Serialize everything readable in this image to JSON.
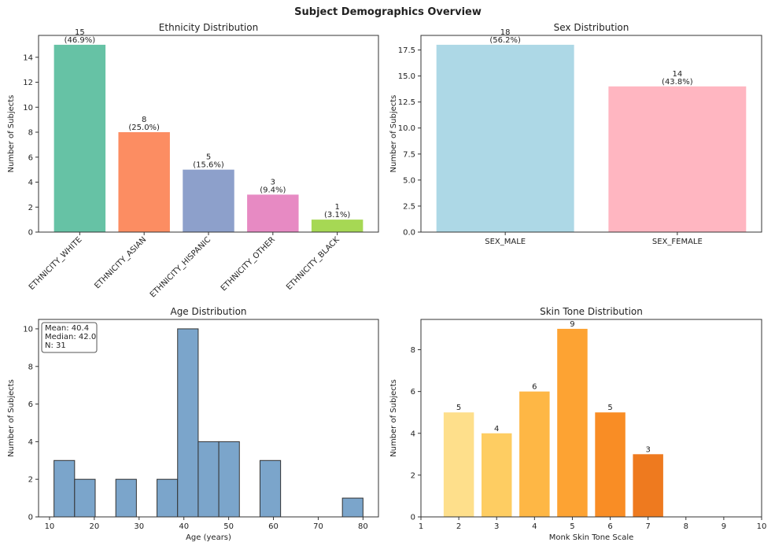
{
  "title": "Subject Demographics Overview",
  "chart_data": [
    {
      "type": "bar",
      "title": "Ethnicity Distribution",
      "ylabel": "Number of Subjects",
      "categories": [
        "ETHNICITY_WHITE",
        "ETHNICITY_ASIAN",
        "ETHNICITY_HISPANIC",
        "ETHNICITY_OTHER",
        "ETHNICITY_BLACK"
      ],
      "values": [
        15,
        8,
        5,
        3,
        1
      ],
      "value_labels": [
        "15\n(46.9%)",
        "8\n(25.0%)",
        "5\n(15.6%)",
        "3\n(9.4%)",
        "1\n(3.1%)"
      ],
      "colors": [
        "#66c2a5",
        "#fc8d62",
        "#8da0cb",
        "#e78ac3",
        "#a6d854"
      ],
      "xtick_rotation": 45,
      "ylim": [
        0,
        15.75
      ],
      "yticks": [
        0,
        2,
        4,
        6,
        8,
        10,
        12,
        14
      ]
    },
    {
      "type": "bar",
      "title": "Sex Distribution",
      "ylabel": "Number of Subjects",
      "categories": [
        "SEX_MALE",
        "SEX_FEMALE"
      ],
      "values": [
        18,
        14
      ],
      "value_labels": [
        "18\n(56.2%)",
        "14\n(43.8%)"
      ],
      "colors": [
        "#add8e6",
        "#ffb6c1"
      ],
      "ylim": [
        0,
        18.9
      ],
      "yticks": [
        {
          "value": 0,
          "label": "0.0"
        },
        2.5,
        {
          "value": 5,
          "label": "5.0"
        },
        7.5,
        {
          "value": 10,
          "label": "10.0"
        },
        12.5,
        {
          "value": 15,
          "label": "15.0"
        },
        17.5
      ]
    },
    {
      "type": "histogram",
      "title": "Age Distribution",
      "xlabel": "Age (years)",
      "ylabel": "Number of Subjects",
      "bins": [
        11,
        15.6,
        20.2,
        24.8,
        29.4,
        34,
        38.6,
        43.2,
        47.8,
        52.4,
        57,
        61.6,
        66.2,
        70.8,
        75.4,
        80
      ],
      "values": [
        3,
        2,
        0,
        2,
        0,
        2,
        10,
        4,
        4,
        0,
        3,
        0,
        0,
        0,
        1
      ],
      "color": "#7ba5cb",
      "edgecolor": "#333333",
      "annotation": "Mean: 40.4\nMedian: 42.0\nN: 31",
      "xlim": [
        7.55,
        83.45
      ],
      "xticks": [
        10,
        20,
        30,
        40,
        50,
        60,
        70,
        80
      ],
      "ylim": [
        0,
        10.5
      ],
      "yticks": [
        0,
        2,
        4,
        6,
        8,
        10
      ]
    },
    {
      "type": "bar",
      "title": "Skin Tone Distribution",
      "xlabel": "Monk Skin Tone Scale",
      "ylabel": "Number of Subjects",
      "x": [
        2,
        3,
        4,
        5,
        6,
        7
      ],
      "values": [
        5,
        4,
        6,
        9,
        5,
        3
      ],
      "colors": [
        "#fedf8b",
        "#fecd62",
        "#feb745",
        "#fda333",
        "#f98d25",
        "#ee7a1f"
      ],
      "xlim": [
        1,
        10
      ],
      "xticks": [
        1,
        2,
        3,
        4,
        5,
        6,
        7,
        8,
        9,
        10
      ],
      "ylim": [
        0,
        9.45
      ],
      "yticks": [
        0,
        2,
        4,
        6,
        8
      ]
    }
  ]
}
